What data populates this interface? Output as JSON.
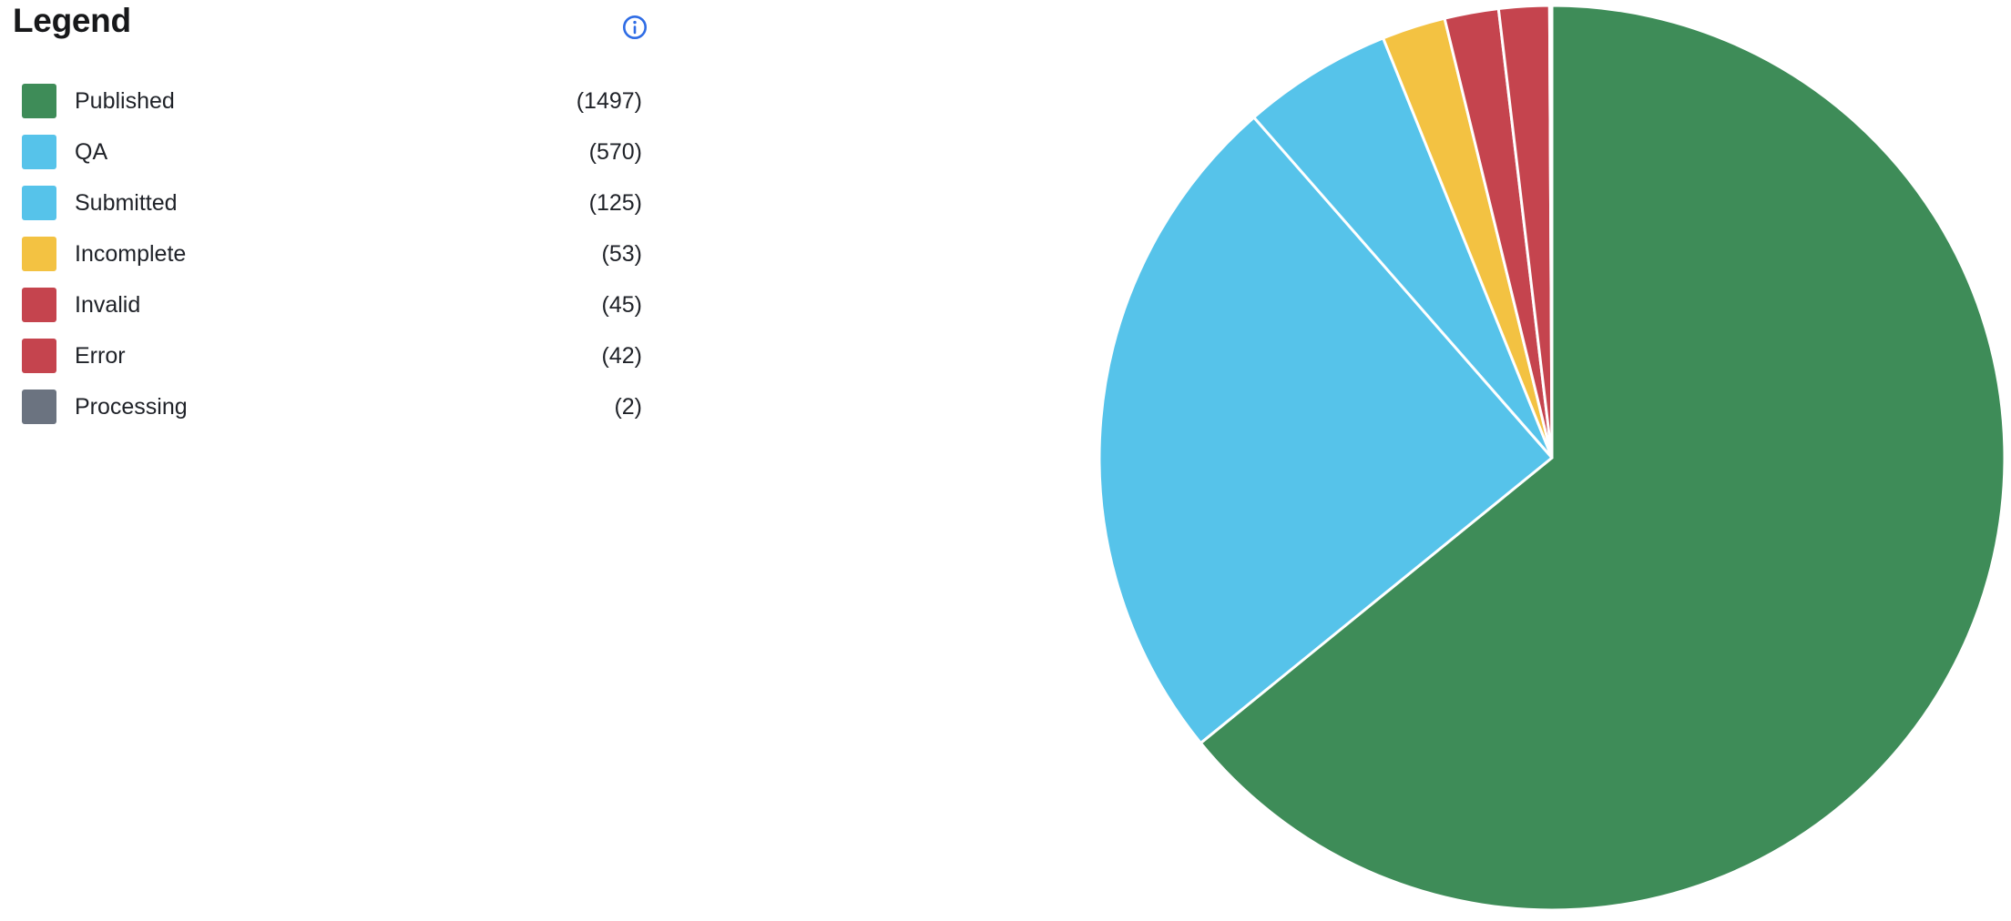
{
  "page": {
    "background": "#ffffff"
  },
  "legend": {
    "title": "Legend",
    "info_icon": "info-icon",
    "info_color": "#2e6ce5",
    "text_color": "#1f2228",
    "items": [
      {
        "label": "Published",
        "count": 1497,
        "count_display": "(1497)",
        "color": "#3E8C58"
      },
      {
        "label": "QA",
        "count": 570,
        "count_display": "(570)",
        "color": "#56C3EA"
      },
      {
        "label": "Submitted",
        "count": 125,
        "count_display": "(125)",
        "color": "#56C3EA"
      },
      {
        "label": "Incomplete",
        "count": 53,
        "count_display": "(53)",
        "color": "#F3C242"
      },
      {
        "label": "Invalid",
        "count": 45,
        "count_display": "(45)",
        "color": "#C5444E"
      },
      {
        "label": "Error",
        "count": 42,
        "count_display": "(42)",
        "color": "#C5444E"
      },
      {
        "label": "Processing",
        "count": 2,
        "count_display": "(2)",
        "color": "#6B7380"
      }
    ]
  },
  "chart_data": {
    "type": "pie",
    "title": "Legend",
    "categories": [
      "Published",
      "QA",
      "Submitted",
      "Incomplete",
      "Invalid",
      "Error",
      "Processing"
    ],
    "values": [
      1497,
      570,
      125,
      53,
      45,
      42,
      2
    ],
    "colors": [
      "#3E8C58",
      "#56C3EA",
      "#56C3EA",
      "#F3C242",
      "#C5444E",
      "#C5444E",
      "#6B7380"
    ],
    "start_angle_deg": 0,
    "direction": "clockwise",
    "legend_position": "left",
    "slice_border_color": "#ffffff",
    "slice_border_width": 3
  }
}
